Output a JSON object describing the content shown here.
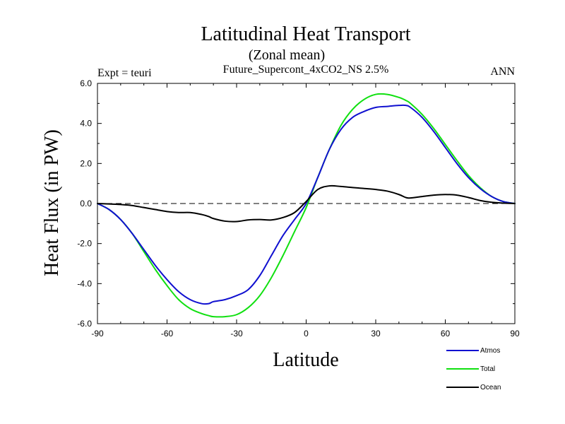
{
  "chart_data": {
    "type": "line",
    "title": "Latitudinal Heat Transport",
    "subtitle": "(Zonal mean)",
    "case_label": "Future_Supercont_4xCO2_NS 2.5%",
    "left_label": "Expt = teuri",
    "right_label": "ANN",
    "xlabel": "Latitude",
    "ylabel": "Heat Flux (in PW)",
    "xlim": [
      -90,
      90
    ],
    "ylim": [
      -6,
      6
    ],
    "xticks": [
      -90,
      -60,
      -30,
      0,
      30,
      60,
      90
    ],
    "xtick_labels": [
      "-90",
      "-60",
      "-30",
      "0",
      "30",
      "60",
      "90"
    ],
    "yticks": [
      -6,
      -4,
      -2,
      0,
      2,
      4,
      6
    ],
    "ytick_labels": [
      "-6.0",
      "-4.0",
      "-2.0",
      "0.0",
      "2.0",
      "4.0",
      "6.0"
    ],
    "zero_line": "dashed",
    "legend_placement": "bottom-right",
    "x": [
      -90,
      -85,
      -80,
      -75,
      -70,
      -65,
      -60,
      -55,
      -50,
      -45,
      -42,
      -40,
      -35,
      -30,
      -25,
      -20,
      -15,
      -10,
      -5,
      0,
      5,
      10,
      15,
      20,
      25,
      30,
      35,
      40,
      43,
      45,
      50,
      55,
      60,
      65,
      70,
      75,
      80,
      85,
      90
    ],
    "series": [
      {
        "name": "Atmos",
        "color": "#1010d0",
        "values": [
          0.0,
          -0.3,
          -0.8,
          -1.5,
          -2.3,
          -3.1,
          -3.8,
          -4.4,
          -4.8,
          -5.0,
          -5.0,
          -4.9,
          -4.8,
          -4.6,
          -4.3,
          -3.6,
          -2.6,
          -1.6,
          -0.8,
          0.0,
          1.3,
          2.7,
          3.7,
          4.3,
          4.6,
          4.8,
          4.85,
          4.9,
          4.9,
          4.8,
          4.3,
          3.6,
          2.8,
          2.0,
          1.3,
          0.75,
          0.35,
          0.1,
          0.0
        ]
      },
      {
        "name": "Total",
        "color": "#10e010",
        "values": [
          0.0,
          -0.3,
          -0.8,
          -1.5,
          -2.4,
          -3.3,
          -4.1,
          -4.8,
          -5.25,
          -5.5,
          -5.6,
          -5.65,
          -5.65,
          -5.55,
          -5.2,
          -4.6,
          -3.7,
          -2.6,
          -1.4,
          -0.2,
          1.3,
          2.7,
          3.9,
          4.7,
          5.2,
          5.45,
          5.45,
          5.3,
          5.15,
          5.0,
          4.45,
          3.75,
          2.95,
          2.15,
          1.4,
          0.8,
          0.35,
          0.1,
          0.0
        ]
      },
      {
        "name": "Ocean",
        "color": "#000000",
        "values": [
          0.0,
          -0.02,
          -0.05,
          -0.1,
          -0.2,
          -0.3,
          -0.4,
          -0.45,
          -0.45,
          -0.55,
          -0.65,
          -0.75,
          -0.88,
          -0.9,
          -0.82,
          -0.8,
          -0.82,
          -0.7,
          -0.45,
          0.1,
          0.7,
          0.88,
          0.85,
          0.8,
          0.75,
          0.7,
          0.62,
          0.45,
          0.3,
          0.28,
          0.35,
          0.42,
          0.45,
          0.42,
          0.3,
          0.15,
          0.06,
          0.02,
          0.0
        ]
      }
    ]
  }
}
